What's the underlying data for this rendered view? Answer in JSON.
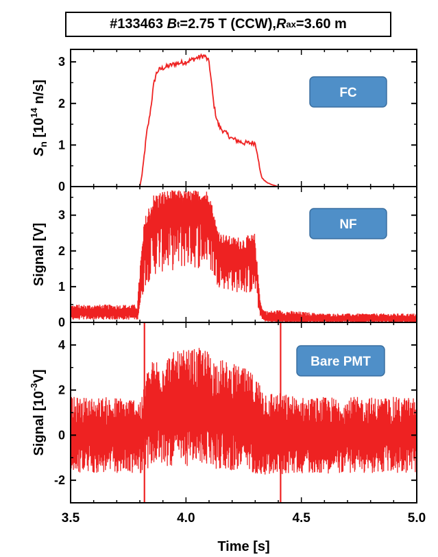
{
  "title": {
    "shot": "#133463",
    "bt_symbol": "B",
    "bt_sub": "t",
    "bt_value": "=2.75 T (CCW), ",
    "rax_symbol": "R",
    "rax_sub": "ax",
    "rax_value": "=3.60 m"
  },
  "colors": {
    "trace": "#ee2222",
    "badge": "#4f8fc8",
    "badge_border": "#3a6fa0",
    "badge_text": "#ffffff",
    "axis": "#000000"
  },
  "chart_data": [
    {
      "type": "line",
      "badge": "FC",
      "ylabel": "S",
      "ylabel_sub": "n",
      "ylabel_rest": " [10",
      "ylabel_sup": "14",
      "ylabel_end": " n/s]",
      "ylim": [
        0,
        3.3
      ],
      "yticks": [
        0,
        1,
        2,
        3
      ],
      "xlim": [
        3.5,
        5.0
      ],
      "series": [
        {
          "x": [
            3.5,
            3.8,
            3.81,
            3.82,
            3.83,
            3.84,
            3.85,
            3.86,
            3.87,
            3.88,
            3.9,
            3.95,
            4.0,
            4.05,
            4.08,
            4.1,
            4.11,
            4.12,
            4.13,
            4.14,
            4.15,
            4.17,
            4.2,
            4.25,
            4.28,
            4.3,
            4.31,
            4.32,
            4.33,
            4.35,
            4.37,
            4.4,
            4.5,
            5.0
          ],
          "y": [
            0.0,
            0.0,
            0.3,
            0.8,
            1.3,
            1.6,
            2.0,
            2.45,
            2.7,
            2.8,
            2.85,
            2.95,
            3.0,
            3.1,
            3.15,
            3.0,
            2.5,
            2.0,
            1.7,
            1.5,
            1.4,
            1.3,
            1.15,
            1.05,
            1.05,
            1.05,
            0.8,
            0.4,
            0.2,
            0.1,
            0.05,
            0.0,
            0.0,
            0.0
          ],
          "noise": 0.06
        }
      ]
    },
    {
      "type": "line",
      "badge": "NF",
      "ylabel": "Signal [V]",
      "ylim": [
        0,
        3.8
      ],
      "yticks": [
        0,
        1,
        2,
        3
      ],
      "xlim": [
        3.5,
        5.0
      ],
      "series": [
        {
          "x": [
            3.5,
            3.79,
            3.8,
            3.81,
            3.82,
            3.84,
            3.86,
            3.9,
            3.95,
            4.0,
            4.05,
            4.08,
            4.1,
            4.12,
            4.13,
            4.15,
            4.2,
            4.25,
            4.3,
            4.31,
            4.32,
            4.33,
            4.35,
            4.4,
            4.5,
            4.6,
            5.0
          ],
          "y": [
            0.25,
            0.25,
            0.8,
            1.4,
            2.0,
            2.4,
            2.7,
            2.9,
            3.0,
            3.1,
            3.1,
            3.1,
            3.1,
            2.5,
            2.2,
            2.0,
            1.8,
            1.7,
            1.7,
            1.0,
            0.5,
            0.2,
            0.12,
            0.1,
            0.1,
            0.1,
            0.1
          ],
          "noise_upper": [
            0.25,
            0.25,
            0.8,
            0.8,
            0.9,
            0.9,
            0.9,
            0.8,
            0.7,
            0.6,
            0.6,
            0.6,
            0.6,
            0.6,
            0.6,
            0.5,
            0.6,
            0.7,
            0.8,
            0.5,
            0.3,
            0.2,
            0.2,
            0.25,
            0.2,
            0.15,
            0.15
          ],
          "clip": 3.72
        }
      ]
    },
    {
      "type": "line",
      "badge": "Bare PMT",
      "ylabel": "Signal [10",
      "ylabel_sup": "-3",
      "ylabel_end": "V]",
      "ylim": [
        -3,
        5
      ],
      "yticks": [
        -2,
        0,
        2,
        4
      ],
      "xlim": [
        3.5,
        5.0
      ],
      "xticks": [
        3.5,
        4.0,
        4.5,
        5.0
      ],
      "xticklabels": [
        "3.5",
        "4.0",
        "4.5",
        "5.0"
      ],
      "xlabel": "Time [s]",
      "spikes": [
        3.82,
        4.41
      ],
      "series": [
        {
          "x": [
            3.5,
            3.81,
            3.83,
            3.86,
            3.9,
            4.0,
            4.08,
            4.12,
            4.2,
            4.25,
            4.3,
            4.35,
            4.5,
            5.0
          ],
          "y": [
            0.0,
            0.0,
            0.7,
            1.0,
            1.1,
            1.2,
            1.3,
            1.0,
            0.8,
            0.7,
            0.5,
            0.1,
            0.0,
            0.0
          ],
          "amp": [
            1.7,
            1.7,
            2.2,
            2.4,
            2.5,
            2.6,
            2.6,
            2.5,
            2.4,
            2.3,
            2.2,
            1.9,
            1.7,
            1.7
          ]
        }
      ]
    }
  ]
}
